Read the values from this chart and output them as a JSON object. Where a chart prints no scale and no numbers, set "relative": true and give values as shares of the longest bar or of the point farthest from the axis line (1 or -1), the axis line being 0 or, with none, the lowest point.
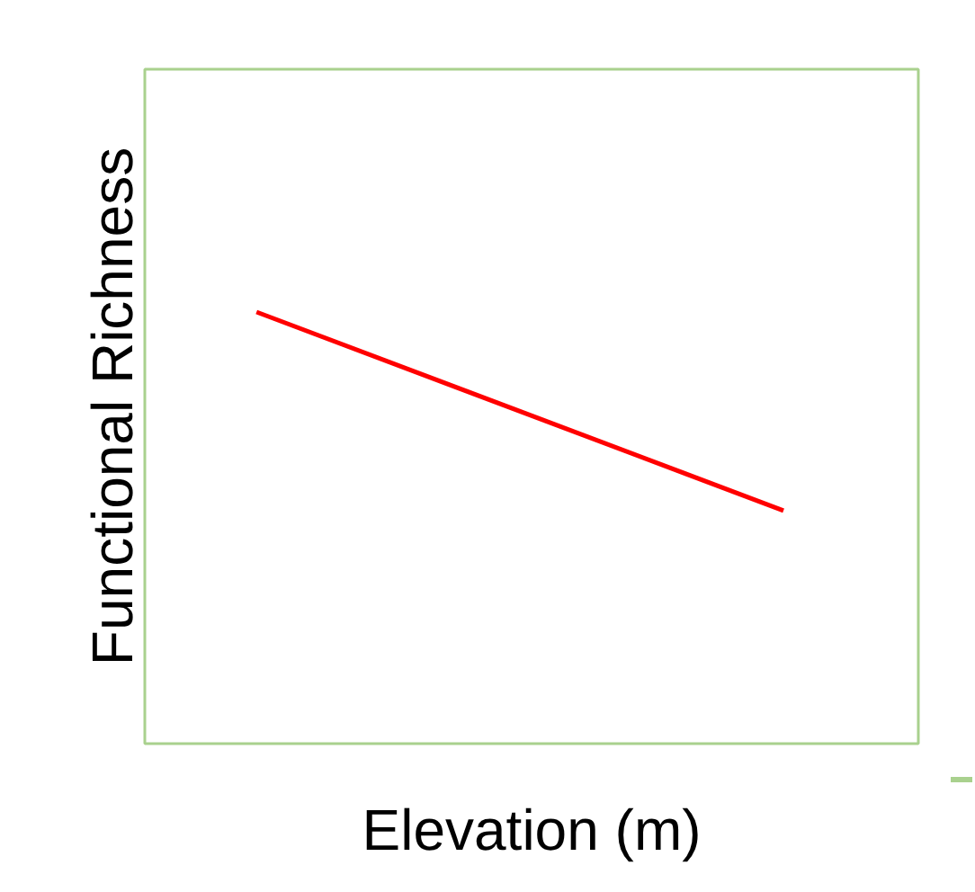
{
  "chart_data": {
    "type": "line",
    "xlabel": "Elevation (m)",
    "ylabel": "Functional Richness",
    "categories": [
      null,
      null
    ],
    "relative": true,
    "tick_labels": false,
    "series": [
      {
        "color": "#ff0000",
        "values": [
          1,
          0.54
        ]
      }
    ]
  }
}
